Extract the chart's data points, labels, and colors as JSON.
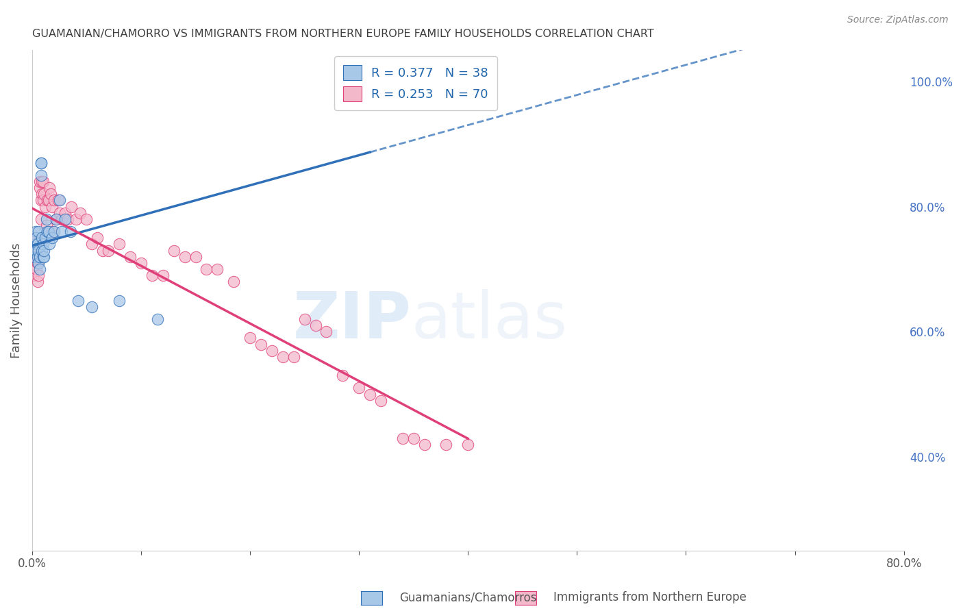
{
  "title": "GUAMANIAN/CHAMORRO VS IMMIGRANTS FROM NORTHERN EUROPE FAMILY HOUSEHOLDS CORRELATION CHART",
  "source": "Source: ZipAtlas.com",
  "ylabel": "Family Households",
  "blue_label": "Guamanians/Chamorros",
  "pink_label": "Immigrants from Northern Europe",
  "blue_R": 0.377,
  "blue_N": 38,
  "pink_R": 0.253,
  "pink_N": 70,
  "blue_color": "#a8c8e8",
  "pink_color": "#f4b8cb",
  "blue_line_color": "#3070b8",
  "pink_line_color": "#e0407a",
  "legend_R_color": "#2166ac",
  "title_color": "#404040",
  "axis_label_color": "#555555",
  "right_axis_color": "#4472c4",
  "xlim": [
    0.0,
    0.8
  ],
  "ylim": [
    0.25,
    1.05
  ],
  "right_yticks": [
    0.4,
    0.6,
    0.8,
    1.0
  ],
  "right_ytick_labels": [
    "40.0%",
    "60.0%",
    "80.0%",
    "100.0%"
  ],
  "blue_x": [
    0.002,
    0.003,
    0.003,
    0.004,
    0.004,
    0.005,
    0.005,
    0.006,
    0.006,
    0.006,
    0.007,
    0.007,
    0.008,
    0.008,
    0.008,
    0.009,
    0.009,
    0.01,
    0.01,
    0.011,
    0.011,
    0.012,
    0.013,
    0.014,
    0.015,
    0.016,
    0.018,
    0.02,
    0.022,
    0.025,
    0.027,
    0.03,
    0.035,
    0.042,
    0.055,
    0.08,
    0.115,
    0.31
  ],
  "blue_y": [
    0.72,
    0.74,
    0.76,
    0.73,
    0.75,
    0.72,
    0.74,
    0.71,
    0.73,
    0.76,
    0.7,
    0.72,
    0.85,
    0.87,
    0.87,
    0.73,
    0.75,
    0.72,
    0.74,
    0.72,
    0.73,
    0.75,
    0.78,
    0.76,
    0.76,
    0.74,
    0.75,
    0.76,
    0.78,
    0.81,
    0.76,
    0.78,
    0.76,
    0.65,
    0.64,
    0.65,
    0.62,
    1.0
  ],
  "pink_x": [
    0.001,
    0.002,
    0.003,
    0.003,
    0.004,
    0.004,
    0.005,
    0.005,
    0.006,
    0.006,
    0.007,
    0.007,
    0.008,
    0.008,
    0.009,
    0.009,
    0.01,
    0.01,
    0.011,
    0.012,
    0.013,
    0.014,
    0.015,
    0.016,
    0.017,
    0.018,
    0.019,
    0.02,
    0.022,
    0.024,
    0.025,
    0.027,
    0.03,
    0.033,
    0.036,
    0.04,
    0.044,
    0.05,
    0.055,
    0.06,
    0.065,
    0.07,
    0.08,
    0.09,
    0.1,
    0.11,
    0.12,
    0.13,
    0.14,
    0.15,
    0.16,
    0.17,
    0.185,
    0.2,
    0.21,
    0.22,
    0.23,
    0.24,
    0.25,
    0.26,
    0.27,
    0.285,
    0.3,
    0.31,
    0.32,
    0.34,
    0.35,
    0.36,
    0.38,
    0.4
  ],
  "pink_y": [
    0.69,
    0.72,
    0.72,
    0.75,
    0.7,
    0.73,
    0.68,
    0.71,
    0.69,
    0.72,
    0.83,
    0.84,
    0.78,
    0.81,
    0.82,
    0.84,
    0.81,
    0.84,
    0.82,
    0.8,
    0.77,
    0.81,
    0.81,
    0.83,
    0.82,
    0.8,
    0.76,
    0.81,
    0.78,
    0.81,
    0.79,
    0.78,
    0.79,
    0.78,
    0.8,
    0.78,
    0.79,
    0.78,
    0.74,
    0.75,
    0.73,
    0.73,
    0.74,
    0.72,
    0.71,
    0.69,
    0.69,
    0.73,
    0.72,
    0.72,
    0.7,
    0.7,
    0.68,
    0.59,
    0.58,
    0.57,
    0.56,
    0.56,
    0.62,
    0.61,
    0.6,
    0.53,
    0.51,
    0.5,
    0.49,
    0.43,
    0.43,
    0.42,
    0.42,
    0.42
  ],
  "watermark_zip": "ZIP",
  "watermark_atlas": "atlas",
  "background_color": "#ffffff",
  "grid_color": "#d0d0d0"
}
